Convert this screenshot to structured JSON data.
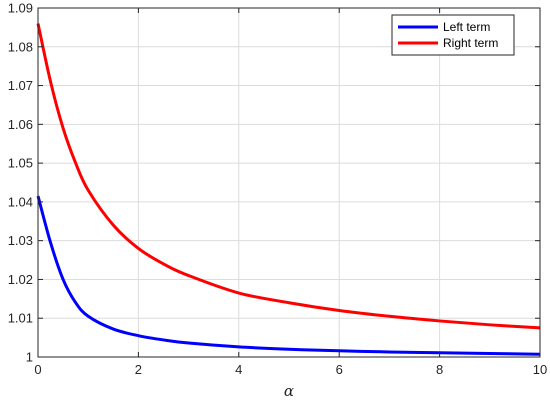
{
  "chart_data": {
    "type": "line",
    "title": "",
    "xlabel": "α",
    "ylabel": "",
    "xlim": [
      0,
      10
    ],
    "ylim": [
      1,
      1.09
    ],
    "xticks": [
      0,
      2,
      4,
      6,
      8,
      10
    ],
    "xtick_labels": [
      "0",
      "2",
      "4",
      "6",
      "8",
      "10"
    ],
    "yticks": [
      1,
      1.01,
      1.02,
      1.03,
      1.04,
      1.05,
      1.06,
      1.07,
      1.08,
      1.09
    ],
    "ytick_labels": [
      "1",
      "1.01",
      "1.02",
      "1.03",
      "1.04",
      "1.05",
      "1.06",
      "1.07",
      "1.08",
      "1.09"
    ],
    "grid": true,
    "legend_position": "top-right",
    "series": [
      {
        "name": "Left term",
        "color": "#0000ff",
        "x": [
          0,
          0.25,
          0.5,
          0.75,
          1,
          1.5,
          2,
          2.5,
          3,
          4,
          5,
          6,
          7,
          8,
          9,
          10
        ],
        "y": [
          1.0415,
          1.0295,
          1.02,
          1.014,
          1.0105,
          1.0072,
          1.0055,
          1.0044,
          1.0036,
          1.0026,
          1.002,
          1.0016,
          1.0013,
          1.0011,
          1.0009,
          1.0007
        ]
      },
      {
        "name": "Right term",
        "color": "#ff0000",
        "x": [
          0,
          0.25,
          0.5,
          0.75,
          1,
          1.5,
          2,
          2.5,
          3,
          4,
          5,
          6,
          7,
          8,
          9,
          10
        ],
        "y": [
          1.086,
          1.071,
          1.059,
          1.05,
          1.043,
          1.034,
          1.028,
          1.024,
          1.021,
          1.0165,
          1.014,
          1.012,
          1.0105,
          1.0093,
          1.0083,
          1.0075
        ]
      }
    ]
  }
}
